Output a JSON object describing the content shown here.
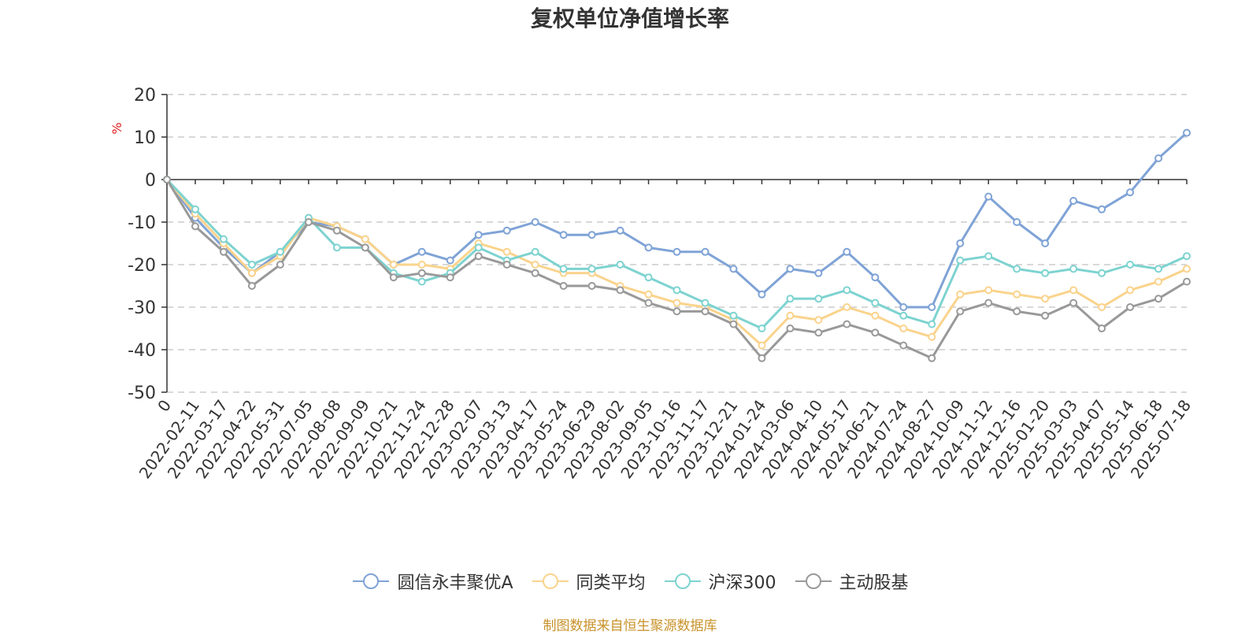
{
  "chart_data": {
    "type": "line",
    "title": "复权单位净值增长率",
    "ylabel": "%",
    "ylim": [
      -50,
      20
    ],
    "yticks": [
      20,
      10,
      0,
      -10,
      -20,
      -30,
      -40,
      -50
    ],
    "grid": true,
    "legend_position": "bottom",
    "x": [
      "0",
      "2022-02-11",
      "2022-03-17",
      "2022-04-22",
      "2022-05-31",
      "2022-07-05",
      "2022-08-08",
      "2022-09-09",
      "2022-10-21",
      "2022-11-24",
      "2022-12-28",
      "2023-02-07",
      "2023-03-13",
      "2023-04-17",
      "2023-05-24",
      "2023-06-29",
      "2023-08-02",
      "2023-09-05",
      "2023-10-16",
      "2023-11-17",
      "2023-12-21",
      "2024-01-24",
      "2024-03-06",
      "2024-04-10",
      "2024-05-17",
      "2024-06-21",
      "2024-07-24",
      "2024-08-27",
      "2024-10-09",
      "2024-11-12",
      "2024-12-16",
      "2025-01-20",
      "2025-03-03",
      "2025-04-07",
      "2025-05-14",
      "2025-06-18",
      "2025-07-18"
    ],
    "series": [
      {
        "name": "圆信永丰聚优A",
        "color": "#7fa3d6",
        "values": [
          0,
          -9,
          -16,
          -22,
          -17,
          -10,
          -11,
          -14,
          -20,
          -17,
          -19,
          -13,
          -12,
          -10,
          -13,
          -13,
          -12,
          -16,
          -17,
          -17,
          -21,
          -27,
          -21,
          -22,
          -17,
          -23,
          -30,
          -30,
          -15,
          -4,
          -10,
          -15,
          -5,
          -7,
          -3,
          5,
          11
        ]
      },
      {
        "name": "同类平均",
        "color": "#fad38c",
        "values": [
          0,
          -8,
          -15,
          -22,
          -18,
          -9,
          -11,
          -14,
          -20,
          -20,
          -21,
          -15,
          -17,
          -20,
          -22,
          -22,
          -25,
          -27,
          -29,
          -30,
          -33,
          -39,
          -32,
          -33,
          -30,
          -32,
          -35,
          -37,
          -27,
          -26,
          -27,
          -28,
          -26,
          -30,
          -26,
          -24,
          -21
        ]
      },
      {
        "name": "沪深300",
        "color": "#7dd3d0",
        "values": [
          0,
          -7,
          -14,
          -20,
          -17,
          -9,
          -16,
          -16,
          -22,
          -24,
          -22,
          -16,
          -19,
          -17,
          -21,
          -21,
          -20,
          -23,
          -26,
          -29,
          -32,
          -35,
          -28,
          -28,
          -26,
          -29,
          -32,
          -34,
          -19,
          -18,
          -21,
          -22,
          -21,
          -22,
          -20,
          -21,
          -18
        ]
      },
      {
        "name": "主动股基",
        "color": "#999999",
        "values": [
          0,
          -11,
          -17,
          -25,
          -20,
          -10,
          -12,
          -16,
          -23,
          -22,
          -23,
          -18,
          -20,
          -22,
          -25,
          -25,
          -26,
          -29,
          -31,
          -31,
          -34,
          -42,
          -35,
          -36,
          -34,
          -36,
          -39,
          -42,
          -31,
          -29,
          -31,
          -32,
          -29,
          -35,
          -30,
          -28,
          -24
        ]
      }
    ]
  },
  "legend_items": [
    {
      "label": "圆信永丰聚优A"
    },
    {
      "label": "同类平均"
    },
    {
      "label": "沪深300"
    },
    {
      "label": "主动股基"
    }
  ],
  "source_text": "制图数据来自恒生聚源数据库"
}
